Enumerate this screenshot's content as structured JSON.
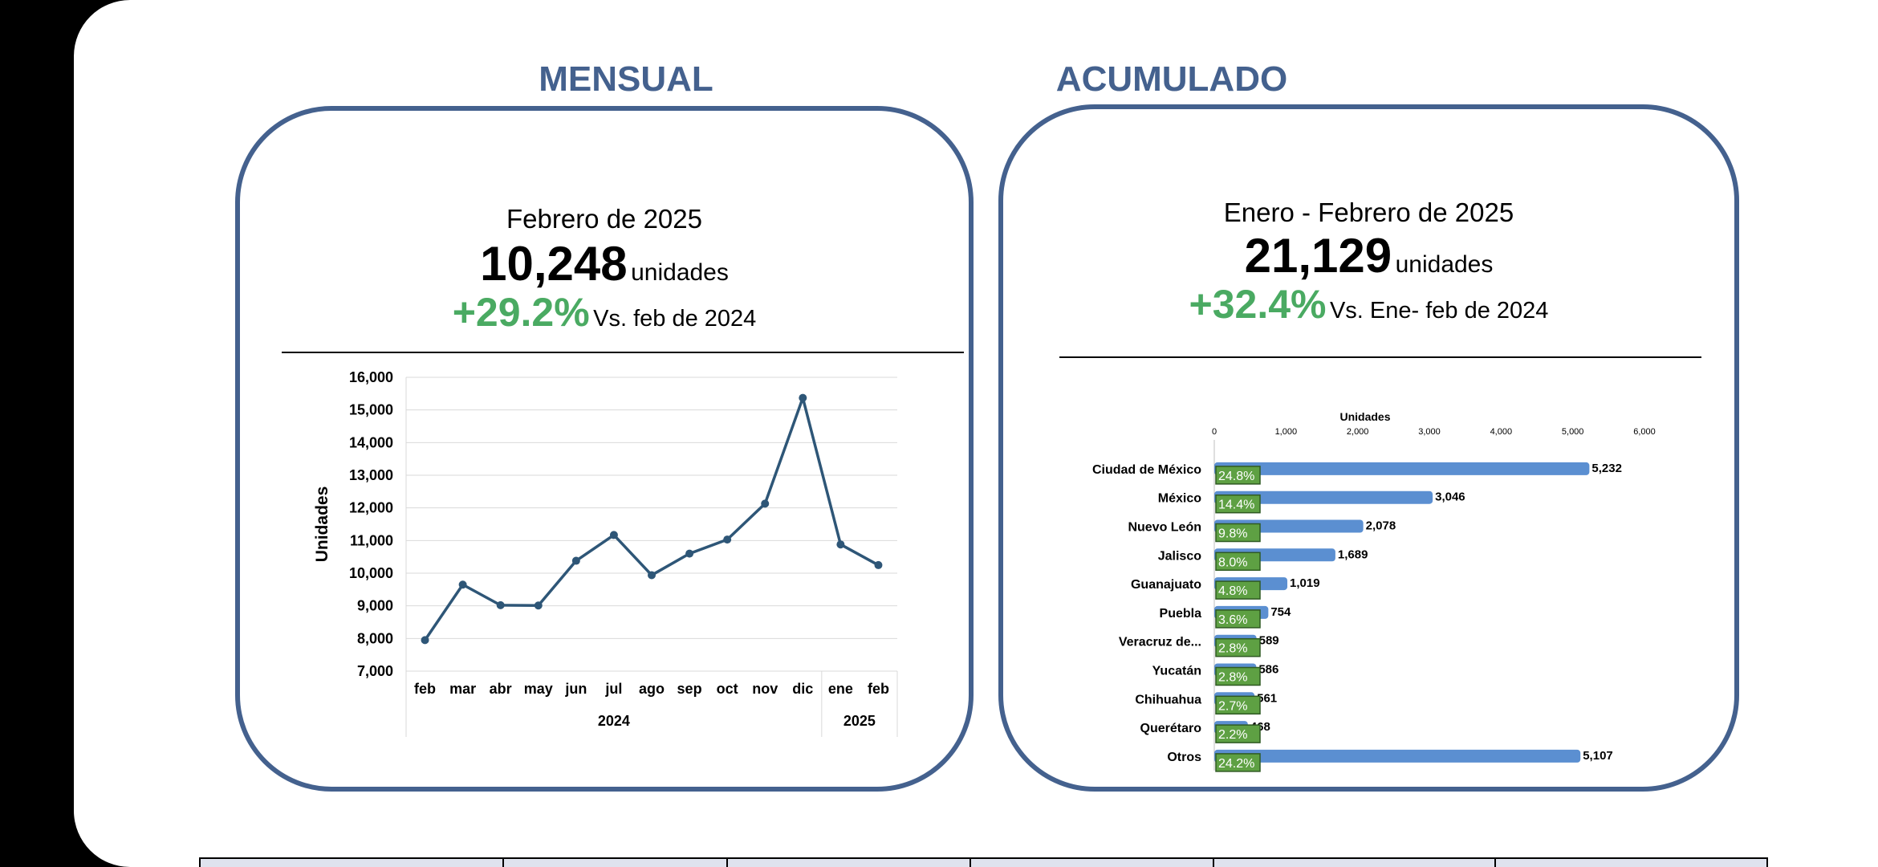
{
  "monthly": {
    "section_title": "MENSUAL",
    "period": "Febrero de 2025",
    "total": "10,248",
    "unit": "unidades",
    "change": "+29.2%",
    "comparison": "Vs. feb de 2024"
  },
  "cumulative": {
    "section_title": "ACUMULADO",
    "period": "Enero - Febrero de 2025",
    "total": "21,129",
    "unit": "unidades",
    "change": "+32.4%",
    "comparison": "Vs. Ene- feb de 2024"
  },
  "colors": {
    "accent": "#44618e",
    "positive": "#4aaa62",
    "line": "#2e5677",
    "bar": "#5b8fd1",
    "share_box": "#5ea043"
  },
  "chart_data": [
    {
      "type": "line",
      "ylabel": "Unidades",
      "ylim": [
        7000,
        16000
      ],
      "yticks": [
        "7,000",
        "8,000",
        "9,000",
        "10,000",
        "11,000",
        "12,000",
        "13,000",
        "14,000",
        "15,000",
        "16,000"
      ],
      "categories": [
        "feb",
        "mar",
        "abr",
        "may",
        "jun",
        "jul",
        "ago",
        "sep",
        "oct",
        "nov",
        "dic",
        "ene",
        "feb"
      ],
      "year_groups": [
        {
          "label": "2024",
          "count": 11
        },
        {
          "label": "2025",
          "count": 2
        }
      ],
      "values": [
        7950,
        9650,
        9020,
        9010,
        10380,
        11170,
        9940,
        10600,
        11030,
        12130,
        15370,
        10880,
        10248
      ],
      "grid": true
    },
    {
      "type": "bar",
      "orientation": "horizontal",
      "xlabel": "Unidades",
      "xlim": [
        0,
        6000
      ],
      "xticks": [
        "0",
        "1,000",
        "2,000",
        "3,000",
        "4,000",
        "5,000",
        "6,000"
      ],
      "categories": [
        "Ciudad de México",
        "México",
        "Nuevo León",
        "Jalisco",
        "Guanajuato",
        "Puebla",
        "Veracruz de...",
        "Yucatán",
        "Chihuahua",
        "Querétaro",
        "Otros"
      ],
      "values": [
        5232,
        3046,
        2078,
        1689,
        1019,
        754,
        589,
        586,
        561,
        468,
        5107
      ],
      "value_labels": [
        "5,232",
        "3,046",
        "2,078",
        "1,689",
        "1,019",
        "754",
        "589",
        "586",
        "561",
        "468",
        "5,107"
      ],
      "shares": [
        "24.8%",
        "14.4%",
        "9.8%",
        "8.0%",
        "4.8%",
        "3.6%",
        "2.8%",
        "2.8%",
        "2.7%",
        "2.2%",
        "24.2%"
      ]
    }
  ]
}
